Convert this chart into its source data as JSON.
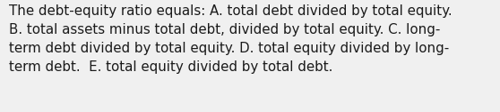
{
  "lines": [
    "The debt-equity ratio equals: A. total debt divided by total equity.",
    "B. total assets minus total debt, divided by total equity. C. long-",
    "term debt divided by total equity. D. total equity divided by long-",
    "term debt.  E. total equity divided by total debt."
  ],
  "background_color": "#f0f0f0",
  "text_color": "#1a1a1a",
  "font_size": 10.8,
  "font_family": "DejaVu Sans",
  "fig_width": 5.58,
  "fig_height": 1.26,
  "dpi": 100
}
